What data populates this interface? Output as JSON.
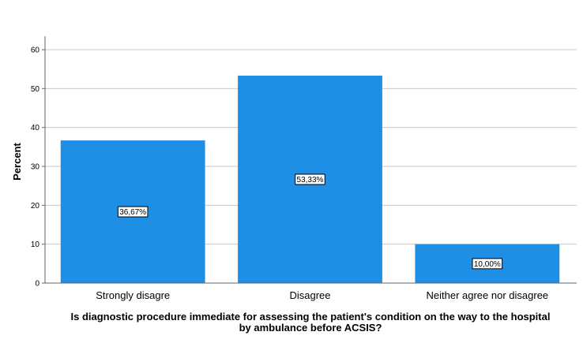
{
  "chart_data": {
    "type": "bar",
    "categories": [
      "Strongly disagre",
      "Disagree",
      "Neither agree nor disagree"
    ],
    "values": [
      36.67,
      53.33,
      10.0
    ],
    "data_labels": [
      "36,67%",
      "53,33%",
      "10,00%"
    ],
    "title": "",
    "xlabel_lines": [
      "Is diagnostic procedure immediate for assessing  the patient's condition on the way to the hospital",
      "by ambulance before ACSIS?"
    ],
    "ylabel": "Percent",
    "ylim": [
      0,
      60
    ],
    "yticks": [
      0,
      10,
      20,
      30,
      40,
      50,
      60
    ],
    "grid": true,
    "legend": "none"
  },
  "colors": {
    "bar": "#1f8fe5",
    "grid": "#c8c8c8",
    "axis": "#666666"
  }
}
